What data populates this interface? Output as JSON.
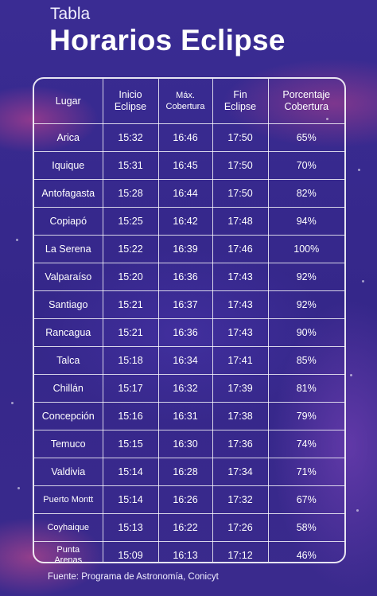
{
  "header": {
    "eyebrow": "Tabla",
    "title": "Horarios Eclipse"
  },
  "table": {
    "columns": [
      "Lugar",
      "Inicio Eclipse",
      "Máx. Cobertura",
      "Fin Eclipse",
      "Porcentaje Cobertura"
    ],
    "rows": [
      {
        "place": "Arica",
        "start": "15:32",
        "max": "16:46",
        "end": "17:50",
        "pct": "65%"
      },
      {
        "place": "Iquique",
        "start": "15:31",
        "max": "16:45",
        "end": "17:50",
        "pct": "70%"
      },
      {
        "place": "Antofagasta",
        "start": "15:28",
        "max": "16:44",
        "end": "17:50",
        "pct": "82%"
      },
      {
        "place": "Copiapó",
        "start": "15:25",
        "max": "16:42",
        "end": "17:48",
        "pct": "94%"
      },
      {
        "place": "La Serena",
        "start": "15:22",
        "max": "16:39",
        "end": "17:46",
        "pct": "100%"
      },
      {
        "place": "Valparaíso",
        "start": "15:20",
        "max": "16:36",
        "end": "17:43",
        "pct": "92%"
      },
      {
        "place": "Santiago",
        "start": "15:21",
        "max": "16:37",
        "end": "17:43",
        "pct": "92%"
      },
      {
        "place": "Rancagua",
        "start": "15:21",
        "max": "16:36",
        "end": "17:43",
        "pct": "90%"
      },
      {
        "place": "Talca",
        "start": "15:18",
        "max": "16:34",
        "end": "17:41",
        "pct": "85%"
      },
      {
        "place": "Chillán",
        "start": "15:17",
        "max": "16:32",
        "end": "17:39",
        "pct": "81%"
      },
      {
        "place": "Concepción",
        "start": "15:16",
        "max": "16:31",
        "end": "17:38",
        "pct": "79%"
      },
      {
        "place": "Temuco",
        "start": "15:15",
        "max": "16:30",
        "end": "17:36",
        "pct": "74%"
      },
      {
        "place": "Valdivia",
        "start": "15:14",
        "max": "16:28",
        "end": "17:34",
        "pct": "71%"
      },
      {
        "place": "Puerto Montt",
        "start": "15:14",
        "max": "16:26",
        "end": "17:32",
        "pct": "67%"
      },
      {
        "place": "Coyhaique",
        "start": "15:13",
        "max": "16:22",
        "end": "17:26",
        "pct": "58%"
      },
      {
        "place": "Punta Arenas",
        "start": "15:09",
        "max": "16:13",
        "end": "17:12",
        "pct": "46%"
      }
    ]
  },
  "footer": {
    "source": "Fuente: Programa de Astronomía, Conicyt"
  },
  "colors": {
    "background": "#3b2b8e",
    "accent_pink": "#d6468c",
    "text": "#ffffff"
  }
}
